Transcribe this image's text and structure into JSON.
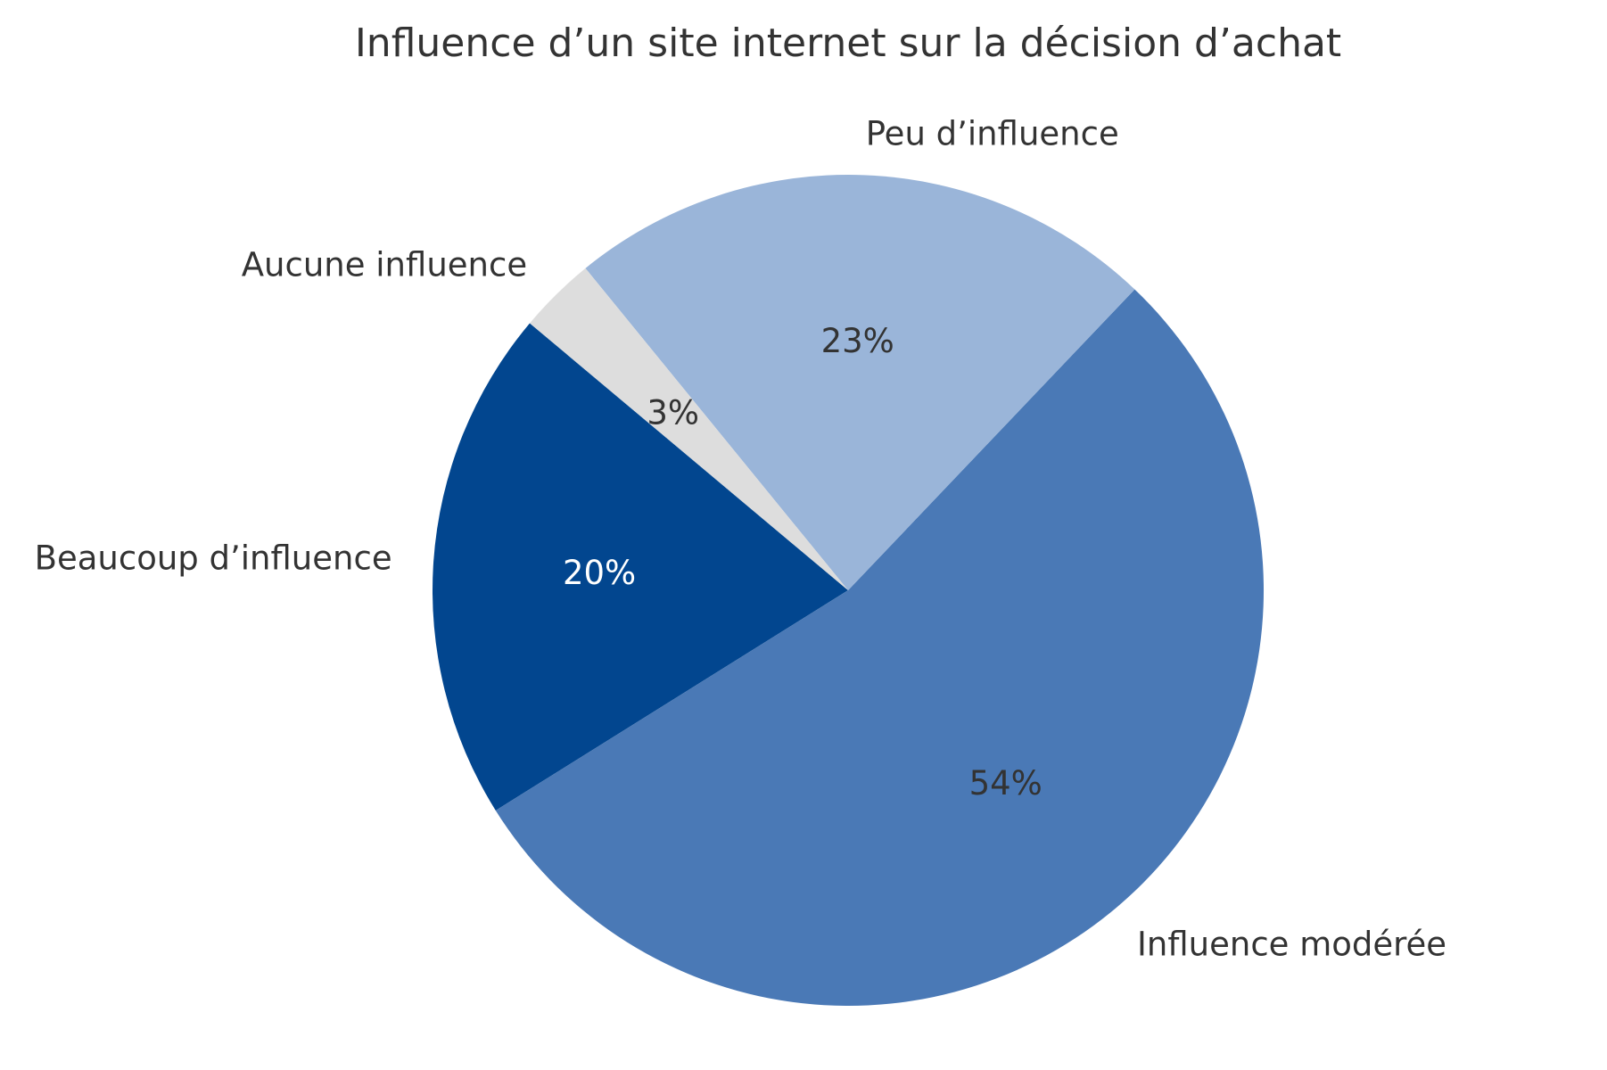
{
  "chart_data": {
    "type": "pie",
    "title": "Influence d’un site internet sur la décision d’achat",
    "slices": [
      {
        "label": "Beaucoup d’influence",
        "value": 20,
        "pct_label": "20%",
        "color": "#02468f",
        "pct_text_color": "#ffffff"
      },
      {
        "label": "Influence modérée",
        "value": 54,
        "pct_label": "54%",
        "color": "#4a79b6",
        "pct_text_color": "#333333"
      },
      {
        "label": "Peu d’influence",
        "value": 23,
        "pct_label": "23%",
        "color": "#9ab5d9",
        "pct_text_color": "#333333"
      },
      {
        "label": "Aucune influence",
        "value": 3,
        "pct_label": "3%",
        "color": "#dddddd",
        "pct_text_color": "#333333"
      }
    ],
    "start_angle_deg": 140,
    "direction": "counterclockwise",
    "legend": "none"
  }
}
